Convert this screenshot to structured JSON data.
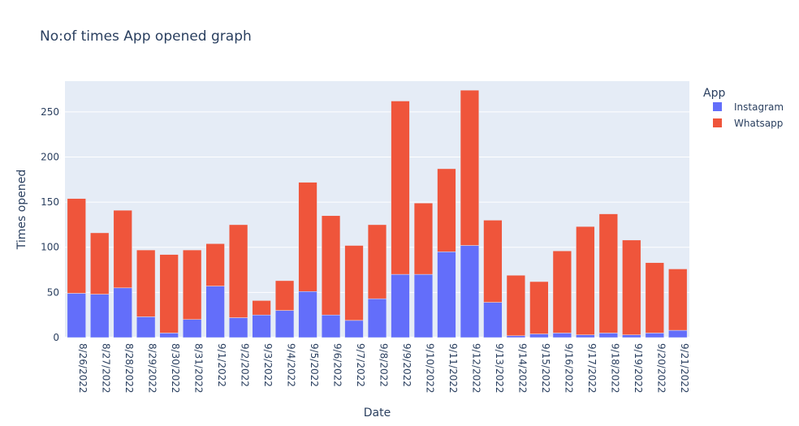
{
  "chart_data": {
    "type": "bar",
    "barmode": "stack",
    "title": "No:of times App opened graph",
    "xlabel": "Date",
    "ylabel": "Times opened",
    "ylim": [
      0,
      284
    ],
    "yticks": [
      0,
      50,
      100,
      150,
      200,
      250
    ],
    "grid": true,
    "legend_title": "App",
    "legend_position": "top-right",
    "background_color": "#e5ecf6",
    "categories": [
      "8/26/2022",
      "8/27/2022",
      "8/28/2022",
      "8/29/2022",
      "8/30/2022",
      "8/31/2022",
      "9/1/2022",
      "9/2/2022",
      "9/3/2022",
      "9/4/2022",
      "9/5/2022",
      "9/6/2022",
      "9/7/2022",
      "9/8/2022",
      "9/9/2022",
      "9/10/2022",
      "9/11/2022",
      "9/12/2022",
      "9/13/2022",
      "9/14/2022",
      "9/15/2022",
      "9/16/2022",
      "9/17/2022",
      "9/18/2022",
      "9/19/2022",
      "9/20/2022",
      "9/21/2022"
    ],
    "series": [
      {
        "name": "Instagram",
        "color": "#636efa",
        "values": [
          49,
          48,
          55,
          23,
          5,
          20,
          57,
          22,
          25,
          30,
          51,
          25,
          19,
          43,
          70,
          70,
          95,
          102,
          39,
          2,
          4,
          5,
          3,
          5,
          3,
          5,
          8
        ]
      },
      {
        "name": "Whatsapp",
        "color": "#ef553b",
        "values": [
          105,
          68,
          86,
          74,
          87,
          77,
          47,
          103,
          16,
          33,
          121,
          110,
          83,
          82,
          192,
          79,
          92,
          172,
          91,
          67,
          58,
          91,
          120,
          132,
          105,
          78,
          68
        ]
      }
    ]
  }
}
